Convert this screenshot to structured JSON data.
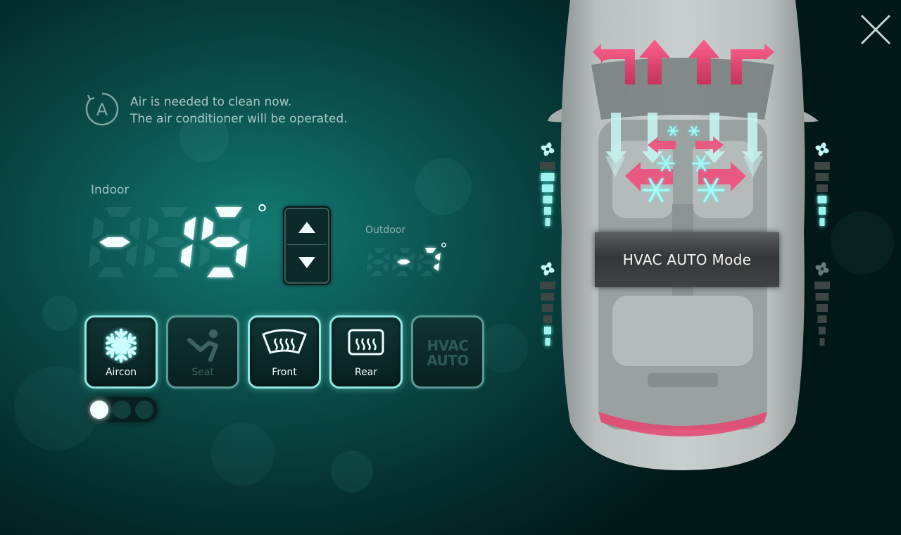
{
  "notice": {
    "icon": "auto-a-icon",
    "line1": "Air is needed to clean now.",
    "line2": "The air conditioner will be operated."
  },
  "indoor": {
    "label": "Indoor",
    "value": "-15",
    "unit": "°"
  },
  "outdoor": {
    "label": "Outdoor",
    "value": "-7",
    "unit": "°"
  },
  "buttons": [
    {
      "label": "Aircon",
      "icon": "snowflake-icon",
      "active": true
    },
    {
      "label": "Seat",
      "icon": "seat-heater-icon",
      "active": false
    },
    {
      "label": "Front",
      "icon": "front-defrost-icon",
      "active": true
    },
    {
      "label": "Rear",
      "icon": "rear-defrost-icon",
      "active": true
    },
    {
      "label": "HVAC AUTO",
      "line1": "HVAC",
      "line2": "AUTO",
      "active": false
    }
  ],
  "page_dots": {
    "count": 3,
    "active_index": 0
  },
  "mode_banner": "HVAC AUTO Mode",
  "fan_levels": {
    "front_left": {
      "level": 5,
      "max": 6
    },
    "front_right": {
      "level": 3,
      "max": 6
    },
    "rear_left": {
      "level": 2,
      "max": 6
    },
    "rear_right": {
      "level": 0,
      "max": 6
    }
  },
  "colors": {
    "accent": "#8ee8e2",
    "warm_arrow": "#e8446e",
    "cool_arrow": "#bff6f2"
  }
}
